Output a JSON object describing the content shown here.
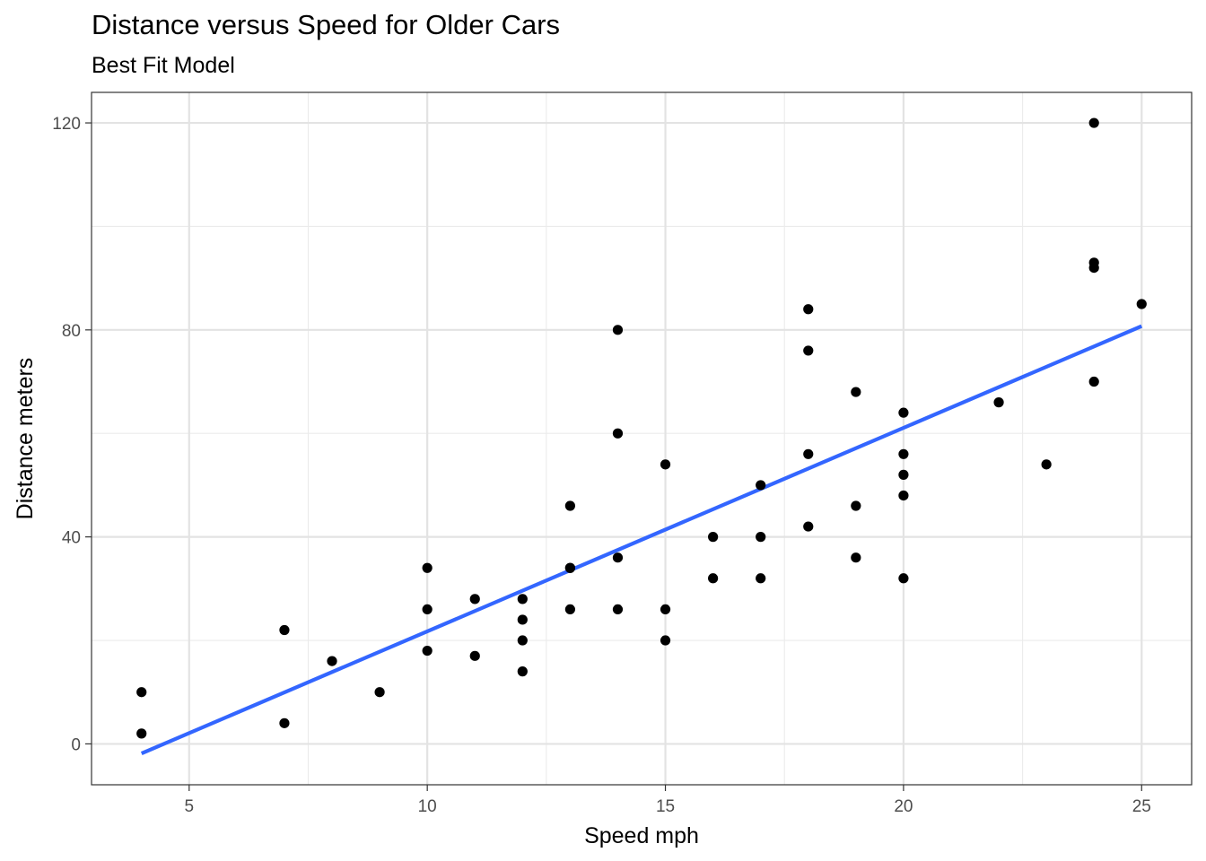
{
  "chart_data": {
    "type": "scatter",
    "title": "Distance versus Speed for Older Cars",
    "subtitle": "Best Fit Model",
    "xlabel": "Speed mph",
    "ylabel": "Distance meters",
    "xlim": [
      2.95,
      26.05
    ],
    "ylim": [
      -7.9,
      125.9
    ],
    "x_ticks": [
      5,
      10,
      15,
      20,
      25
    ],
    "y_ticks": [
      0,
      40,
      80,
      120
    ],
    "grid": true,
    "legend": "none",
    "point_color": "#000000",
    "line_color": "#3366FF",
    "points": [
      [
        4,
        2
      ],
      [
        4,
        10
      ],
      [
        7,
        4
      ],
      [
        7,
        22
      ],
      [
        8,
        16
      ],
      [
        9,
        10
      ],
      [
        10,
        18
      ],
      [
        10,
        26
      ],
      [
        10,
        34
      ],
      [
        11,
        17
      ],
      [
        11,
        28
      ],
      [
        12,
        14
      ],
      [
        12,
        20
      ],
      [
        12,
        24
      ],
      [
        12,
        28
      ],
      [
        13,
        26
      ],
      [
        13,
        34
      ],
      [
        13,
        34
      ],
      [
        13,
        46
      ],
      [
        14,
        26
      ],
      [
        14,
        36
      ],
      [
        14,
        60
      ],
      [
        14,
        80
      ],
      [
        15,
        20
      ],
      [
        15,
        26
      ],
      [
        15,
        54
      ],
      [
        16,
        32
      ],
      [
        16,
        40
      ],
      [
        17,
        32
      ],
      [
        17,
        40
      ],
      [
        17,
        50
      ],
      [
        18,
        42
      ],
      [
        18,
        56
      ],
      [
        18,
        76
      ],
      [
        18,
        84
      ],
      [
        19,
        36
      ],
      [
        19,
        46
      ],
      [
        19,
        68
      ],
      [
        20,
        32
      ],
      [
        20,
        48
      ],
      [
        20,
        52
      ],
      [
        20,
        56
      ],
      [
        20,
        64
      ],
      [
        22,
        66
      ],
      [
        23,
        54
      ],
      [
        24,
        70
      ],
      [
        24,
        92
      ],
      [
        24,
        93
      ],
      [
        24,
        120
      ],
      [
        25,
        85
      ]
    ],
    "fit_line": {
      "x": [
        4,
        25
      ],
      "y": [
        -1.85,
        80.73
      ]
    }
  }
}
